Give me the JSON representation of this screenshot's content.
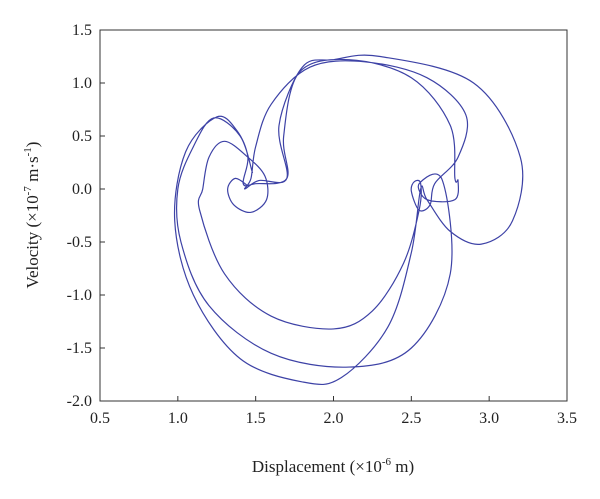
{
  "chart_data": {
    "type": "line",
    "xlabel_parts": [
      "Displacement (×10",
      "-6",
      " m)"
    ],
    "ylabel_parts": [
      "Velocity (×10",
      "-7",
      " m·s",
      "-1",
      ")"
    ],
    "color": "#3d42a6",
    "xlim": [
      0.5,
      3.5
    ],
    "xticks": [
      0.5,
      {
        "value": 1,
        "label": "1.0"
      },
      1.5,
      {
        "value": 2,
        "label": "2.0"
      },
      2.5,
      {
        "value": 3,
        "label": "3.0"
      },
      3.5
    ],
    "ylim": [
      -2,
      1.5
    ],
    "yticks": [
      {
        "value": -2,
        "label": "-2.0"
      },
      -1.5,
      {
        "value": -1,
        "label": "-1.0"
      },
      -0.5,
      {
        "value": 0,
        "label": "0.0"
      },
      0.5,
      {
        "value": 1,
        "label": "1.0"
      },
      1.5
    ],
    "x": [
      1.45,
      1.37,
      1.32,
      1.36,
      1.47,
      1.57,
      1.56,
      1.45,
      1.3,
      1.2,
      1.16,
      1.14,
      1.3,
      1.6,
      2.0,
      2.25,
      2.45,
      2.55,
      2.56,
      2.52,
      2.5,
      2.55,
      2.62,
      2.65,
      2.8,
      2.85,
      2.6,
      2.2,
      1.85,
      1.6,
      1.5,
      1.47,
      1.43,
      1.52,
      1.7,
      1.65,
      1.8,
      2.0,
      2.3,
      2.9,
      3.2,
      3.15,
      2.95,
      2.75,
      2.6,
      2.56,
      2.5,
      2.35,
      2.05,
      1.8,
      1.4,
      1.1,
      0.98,
      1.05,
      1.25,
      1.38,
      1.45,
      1.42,
      1.5,
      1.7,
      1.68,
      1.78,
      2.1,
      2.5,
      2.75,
      2.78,
      2.8,
      2.78,
      2.6,
      2.55,
      2.7,
      2.75,
      2.5,
      2.1,
      1.6,
      1.2,
      1.02,
      1.0,
      1.1,
      1.23,
      1.4,
      1.48
    ],
    "values": [
      0.03,
      0.1,
      0.0,
      -0.15,
      -0.22,
      -0.1,
      0.12,
      0.3,
      0.45,
      0.3,
      0.0,
      -0.2,
      -0.8,
      -1.2,
      -1.32,
      -1.15,
      -0.7,
      -0.2,
      0.05,
      0.07,
      -0.02,
      -0.2,
      -0.15,
      0.05,
      0.3,
      0.7,
      1.05,
      1.2,
      1.15,
      0.8,
      0.4,
      0.1,
      0.0,
      0.08,
      0.1,
      0.6,
      1.15,
      1.22,
      1.25,
      1.0,
      0.3,
      -0.3,
      -0.52,
      -0.4,
      -0.1,
      0.0,
      -0.6,
      -1.3,
      -1.78,
      -1.82,
      -1.6,
      -1.0,
      -0.3,
      0.35,
      0.68,
      0.55,
      0.3,
      0.05,
      0.05,
      0.1,
      0.5,
      1.1,
      1.22,
      1.05,
      0.6,
      0.1,
      0.08,
      -0.1,
      -0.1,
      0.05,
      0.08,
      -0.8,
      -1.5,
      -1.68,
      -1.55,
      -1.1,
      -0.5,
      0.0,
      0.4,
      0.67,
      0.5,
      0.15
    ]
  }
}
